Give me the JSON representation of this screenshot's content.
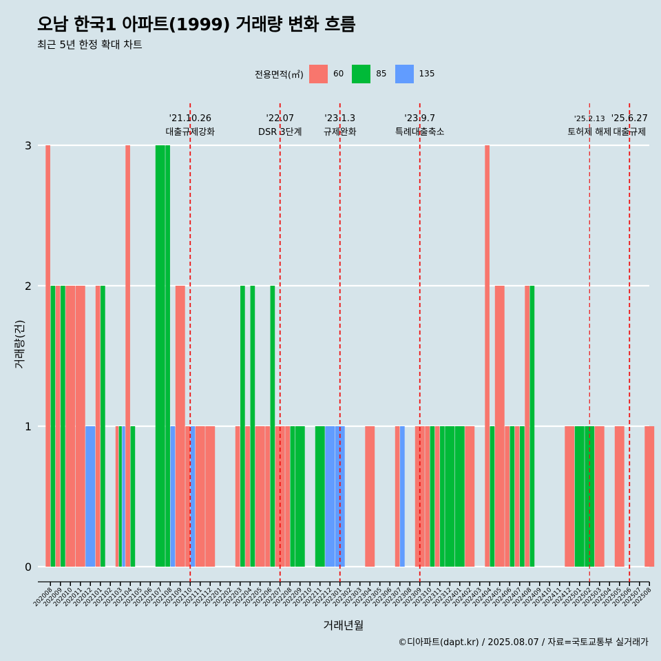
{
  "header": {
    "title": "오남 한국1 아파트(1999) 거래량 변화 흐름",
    "subtitle": "최근 5년 한정 확대 차트"
  },
  "legend": {
    "title": "전용면적(㎡)",
    "items": [
      {
        "label": "60",
        "color": "#f8766d"
      },
      {
        "label": "85",
        "color": "#00ba38"
      },
      {
        "label": "135",
        "color": "#619cff"
      }
    ]
  },
  "footer": "©디아파트(dapt.kr) / 2025.08.07 / 자료=국토교통부 실거래가",
  "chart_data": {
    "type": "bar",
    "title": "오남 한국1 아파트(1999) 거래량 변화 흐름",
    "xlabel": "거래년월",
    "ylabel": "거래량(건)",
    "ylim": [
      0,
      3
    ],
    "yticks": [
      0,
      1,
      2,
      3
    ],
    "categories": [
      "202008",
      "202009",
      "202010",
      "202011",
      "202012",
      "202101",
      "202102",
      "202103",
      "202104",
      "202105",
      "202106",
      "202107",
      "202108",
      "202109",
      "202110",
      "202111",
      "202112",
      "202201",
      "202202",
      "202203",
      "202204",
      "202205",
      "202206",
      "202207",
      "202208",
      "202209",
      "202210",
      "202211",
      "202212",
      "202301",
      "202302",
      "202303",
      "202304",
      "202305",
      "202306",
      "202307",
      "202308",
      "202309",
      "202310",
      "202311",
      "202312",
      "202401",
      "202402",
      "202403",
      "202404",
      "202405",
      "202406",
      "202407",
      "202408",
      "202409",
      "202410",
      "202411",
      "202412",
      "202501",
      "202502",
      "202503",
      "202504",
      "202505",
      "202506",
      "202507",
      "202508"
    ],
    "series": [
      {
        "name": "60",
        "color": "#f8766d",
        "values": [
          3,
          2,
          2,
          2,
          0,
          2,
          0,
          1,
          3,
          0,
          0,
          0,
          0,
          2,
          1,
          1,
          1,
          0,
          0,
          1,
          1,
          1,
          1,
          1,
          1,
          0,
          0,
          0,
          0,
          0,
          0,
          0,
          1,
          0,
          0,
          1,
          0,
          1,
          1,
          1,
          0,
          0,
          1,
          0,
          3,
          2,
          1,
          1,
          2,
          0,
          0,
          0,
          1,
          0,
          0,
          1,
          0,
          1,
          0,
          0,
          1
        ]
      },
      {
        "name": "85",
        "color": "#00ba38",
        "values": [
          2,
          2,
          0,
          0,
          0,
          2,
          0,
          1,
          1,
          0,
          0,
          3,
          3,
          0,
          0,
          0,
          0,
          0,
          0,
          2,
          2,
          0,
          2,
          0,
          1,
          1,
          0,
          1,
          0,
          0,
          0,
          0,
          0,
          0,
          0,
          0,
          0,
          0,
          1,
          1,
          1,
          1,
          0,
          0,
          1,
          0,
          1,
          1,
          2,
          0,
          0,
          0,
          0,
          1,
          1,
          0,
          0,
          0,
          0,
          0,
          0
        ]
      },
      {
        "name": "135",
        "color": "#619cff",
        "values": [
          0,
          0,
          0,
          0,
          1,
          0,
          0,
          1,
          0,
          0,
          0,
          0,
          1,
          0,
          1,
          0,
          0,
          0,
          0,
          0,
          0,
          0,
          0,
          0,
          0,
          0,
          0,
          0,
          1,
          1,
          0,
          0,
          0,
          0,
          0,
          1,
          0,
          0,
          0,
          0,
          0,
          0,
          0,
          0,
          0,
          0,
          0,
          0,
          0,
          0,
          0,
          0,
          0,
          0,
          0,
          0,
          0,
          0,
          0,
          0,
          0
        ]
      }
    ],
    "events": [
      {
        "date": "'21.10.26",
        "label": "대출규제강화",
        "month": "202110"
      },
      {
        "date": "'22.07",
        "label": "DSR 3단계",
        "month": "202207"
      },
      {
        "date": "'23.1.3",
        "label": "규제완화",
        "month": "202301"
      },
      {
        "date": "'23.9.7",
        "label": "특례대출축소",
        "month": "202309"
      },
      {
        "date": "'25.2.13",
        "label": "토허제 해제",
        "month": "202502"
      },
      {
        "date": "'25.6.27",
        "label": "대출규제",
        "month": "202506"
      }
    ]
  }
}
